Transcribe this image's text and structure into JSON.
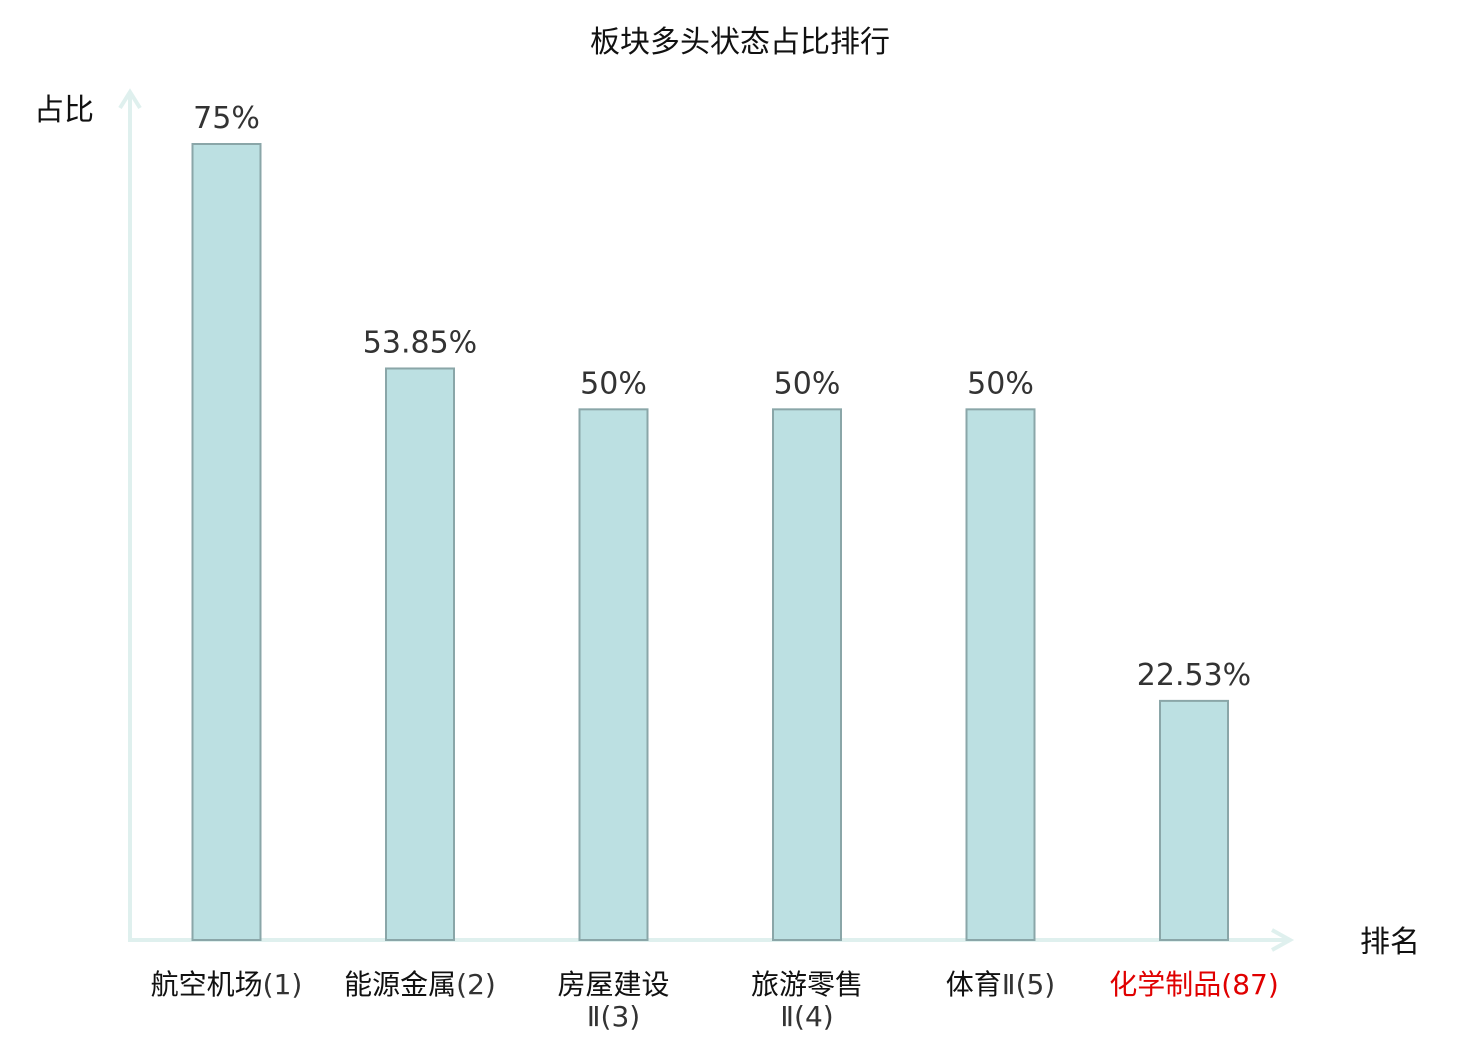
{
  "chart_data": {
    "type": "bar",
    "title": "板块多头状态占比排行",
    "ylabel": "占比",
    "xlabel": "排名",
    "ylim": [
      0,
      80
    ],
    "grid": false,
    "categories": [
      {
        "lines": [
          {
            "name": "航空机场",
            "rank": "(1)"
          }
        ]
      },
      {
        "lines": [
          {
            "name": "能源金属",
            "rank": "(2)"
          }
        ]
      },
      {
        "lines": [
          {
            "name": "房屋建设",
            "rank": ""
          },
          {
            "name": "",
            "rank": "Ⅱ(3)"
          }
        ]
      },
      {
        "lines": [
          {
            "name": "旅游零售",
            "rank": ""
          },
          {
            "name": "",
            "rank": "Ⅱ(4)"
          }
        ]
      },
      {
        "lines": [
          {
            "name": "体育",
            "rank": "Ⅱ(5)"
          }
        ]
      },
      {
        "lines": [
          {
            "name": "化学制品",
            "rank": "(87)"
          }
        ],
        "highlight": true
      }
    ],
    "values": [
      75,
      53.85,
      50,
      50,
      50,
      22.53
    ],
    "value_labels": [
      "75%",
      "53.85%",
      "50%",
      "50%",
      "50%",
      "22.53%"
    ]
  },
  "colors": {
    "bar_fill": "#bce0e2",
    "bar_stroke": "#8aa6a8",
    "axis": "#dff0ee",
    "highlight": "#e00000"
  }
}
